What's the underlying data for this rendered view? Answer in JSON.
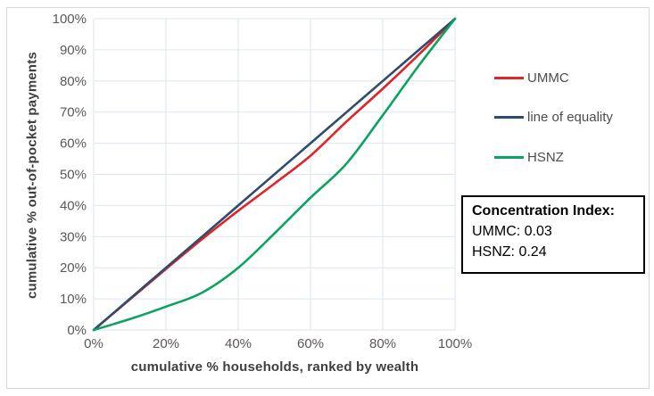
{
  "window": {
    "background": "#ffffff",
    "frame_border_color": "#d8d8d8"
  },
  "chart_data": {
    "type": "line",
    "title": "",
    "xlabel": "cumulative % households, ranked by wealth",
    "ylabel": "cumulative % out-of-pocket payments",
    "xlim": [
      0,
      100
    ],
    "ylim": [
      0,
      100
    ],
    "grid": true,
    "gridline_color": "#dbe5f1",
    "tick_text_color": "#595959",
    "legend_position": "right",
    "x": [
      0,
      10,
      20,
      30,
      40,
      50,
      60,
      70,
      80,
      90,
      100
    ],
    "series": [
      {
        "name": "UMMC",
        "color": "#e02528",
        "values": [
          0,
          9.8,
          19.6,
          29.2,
          38.3,
          47,
          56,
          67,
          77.5,
          88.5,
          100
        ]
      },
      {
        "name": "line of equality",
        "color": "#2e4c6e",
        "values": [
          0,
          10,
          20,
          30,
          40,
          50,
          60,
          70,
          80,
          90,
          100
        ]
      },
      {
        "name": "HSNZ",
        "color": "#0aa45f",
        "values": [
          0,
          3.5,
          7.5,
          12,
          20,
          31,
          42.5,
          53.5,
          69,
          85,
          100
        ]
      }
    ],
    "x_ticks": [
      0,
      20,
      40,
      60,
      80,
      100
    ],
    "x_tick_labels": [
      "0%",
      "20%",
      "40%",
      "60%",
      "80%",
      "100%"
    ],
    "y_ticks": [
      0,
      10,
      20,
      30,
      40,
      50,
      60,
      70,
      80,
      90,
      100
    ],
    "y_tick_labels": [
      "0%",
      "10%",
      "20%",
      "30%",
      "40%",
      "50%",
      "60%",
      "70%",
      "80%",
      "90%",
      "100%"
    ]
  },
  "legend": {
    "items": [
      {
        "label": "UMMC"
      },
      {
        "label": "line of equality"
      },
      {
        "label": "HSNZ"
      }
    ]
  },
  "annotation_box": {
    "title": "Concentration Index:",
    "lines": [
      "UMMC: 0.03",
      "HSNZ: 0.24"
    ]
  }
}
